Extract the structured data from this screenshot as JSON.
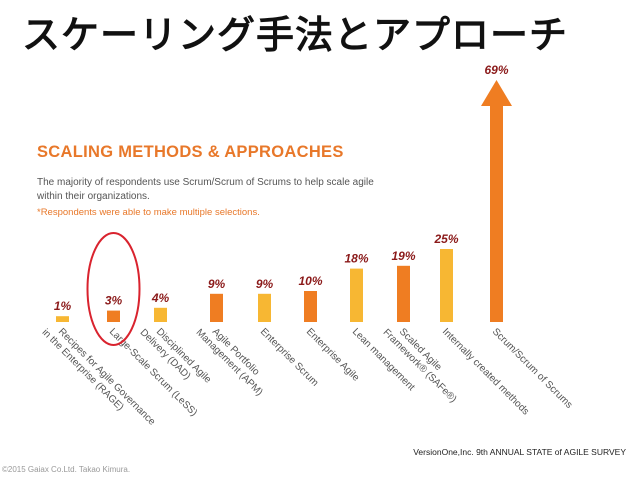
{
  "slide": {
    "title": "スケーリング手法とアプローチ",
    "source": "VersionOne,Inc. 9th ANNUAL STATE of AGILE SURVEY",
    "copyright": "©2015 Gaiax Co.Ltd. Takao Kimura."
  },
  "chart_data": {
    "type": "bar",
    "title": "SCALING METHODS & APPROACHES",
    "subtitle": "The majority of respondents use Scrum/Scrum of Scrums to help scale agile within their organizations.",
    "note": "*Respondents were able to make multiple selections.",
    "categories": [
      [
        "Recipes for Agile Governance",
        "in the Enterprise (RAGE)"
      ],
      [
        "Large-Scale Scrum (LeSS)"
      ],
      [
        "Disciplined Agile",
        "Delivery (DAD)"
      ],
      [
        "Agile Portfolio",
        "Management (APM)"
      ],
      [
        "Enterprise Scrum"
      ],
      [
        "Enterprise Agile"
      ],
      [
        "Lean management"
      ],
      [
        "Scaled Agile",
        "Framework® (SAFe®)"
      ],
      [
        "Internally created methods"
      ],
      [
        "Scrum/Scrum of Scrums"
      ]
    ],
    "values": [
      1,
      3,
      4,
      9,
      9,
      10,
      18,
      19,
      25,
      69
    ],
    "value_labels": [
      "1%",
      "3%",
      "4%",
      "9%",
      "9%",
      "10%",
      "18%",
      "19%",
      "25%",
      "69%"
    ],
    "unit": "%",
    "colors": {
      "yellow": "#f7b733",
      "orange": "#ef7d22",
      "label": "#8b1a1a",
      "highlight": "#d9232e"
    },
    "bar_colors": [
      "yellow",
      "orange",
      "yellow",
      "orange",
      "yellow",
      "orange",
      "yellow",
      "orange",
      "yellow",
      "orange"
    ],
    "highlighted_index": 1,
    "ylim": [
      0,
      70
    ]
  }
}
